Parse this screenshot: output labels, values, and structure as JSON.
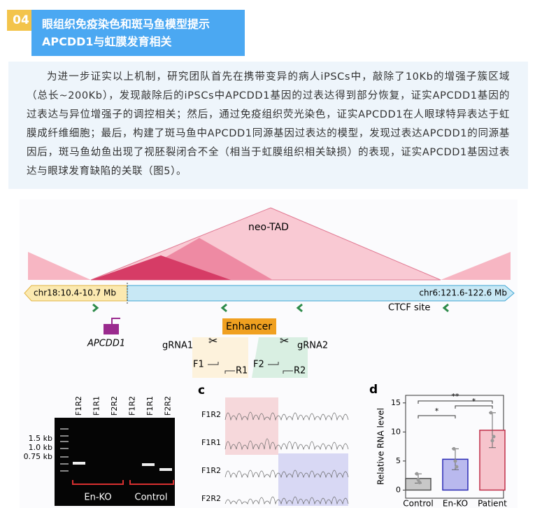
{
  "header": {
    "badge": "04",
    "title_lines": [
      "眼组织免疫染色和斑马鱼模型提示",
      "APCDD1与虹膜发育相关"
    ]
  },
  "paragraph": "为进一步证实以上机制，研究团队首先在携带变异的病人iPSCs中，敲除了10Kb的增强子簇区域（总长~200Kb），发现敲除后的iPSCs中APCDD1基因的过表达得到部分恢复，证实APCDD1基因的过表达与异位增强子的调控相关；然后，通过免疫组织荧光染色，证实APCDD1在人眼球特异表达于虹膜成纤维细胞；最后，构建了斑马鱼中APCDD1同源基因过表达的模型，发现过表达APCDD1的同源基因后，斑马鱼幼鱼出现了视胚裂闭合不全（相当于虹膜组织相关缺损）的表现，证实APCDD1基因过表达与眼球发育缺陷的关联（图5）。",
  "figure": {
    "tad_label": "neo-TAD",
    "chr_left": "chr18:10.4-10.7 Mb",
    "chr_right": "chr6:121.6-122.6 Mb",
    "ctcf": "CTCF site",
    "gene": "APCDD1",
    "enhancer": "Enhancer",
    "grna1": "gRNA1",
    "grna2": "gRNA2",
    "primers": [
      "F1",
      "R1",
      "F2",
      "R2"
    ],
    "gel": {
      "lanes": [
        "F1R2",
        "F1R1",
        "F2R2",
        "F1R2",
        "F1R1",
        "F2R2"
      ],
      "sizes": [
        "1.5 kb",
        "1.0 kb",
        "0.75 kb"
      ],
      "groups": [
        "En-KO",
        "Control"
      ]
    },
    "panel_c": {
      "label": "c",
      "rows": [
        "F1R2",
        "F1R1",
        "F1R2",
        "F2R2"
      ]
    },
    "panel_d": {
      "label": "d",
      "type": "bar",
      "ylabel": "Relative RNA level",
      "categories": [
        "Control",
        "En-KO",
        "Patient"
      ],
      "values": [
        2.0,
        5.3,
        10.3
      ],
      "errors": [
        0.8,
        1.8,
        3.0
      ],
      "points": [
        [
          2.8,
          1.8,
          1.3
        ],
        [
          7.1,
          5.0,
          4.0
        ],
        [
          13.3,
          8.5,
          9.2
        ]
      ],
      "colors": [
        "#c8c8c8",
        "#b9b9ee",
        "#f6c4cc"
      ],
      "edge_colors": [
        "#555555",
        "#2b2bb5",
        "#c0304a"
      ],
      "ylim": [
        -1.4,
        16.3
      ],
      "yticks": [
        0,
        5,
        10,
        15
      ],
      "significance": [
        "*",
        "*",
        "**"
      ]
    }
  }
}
